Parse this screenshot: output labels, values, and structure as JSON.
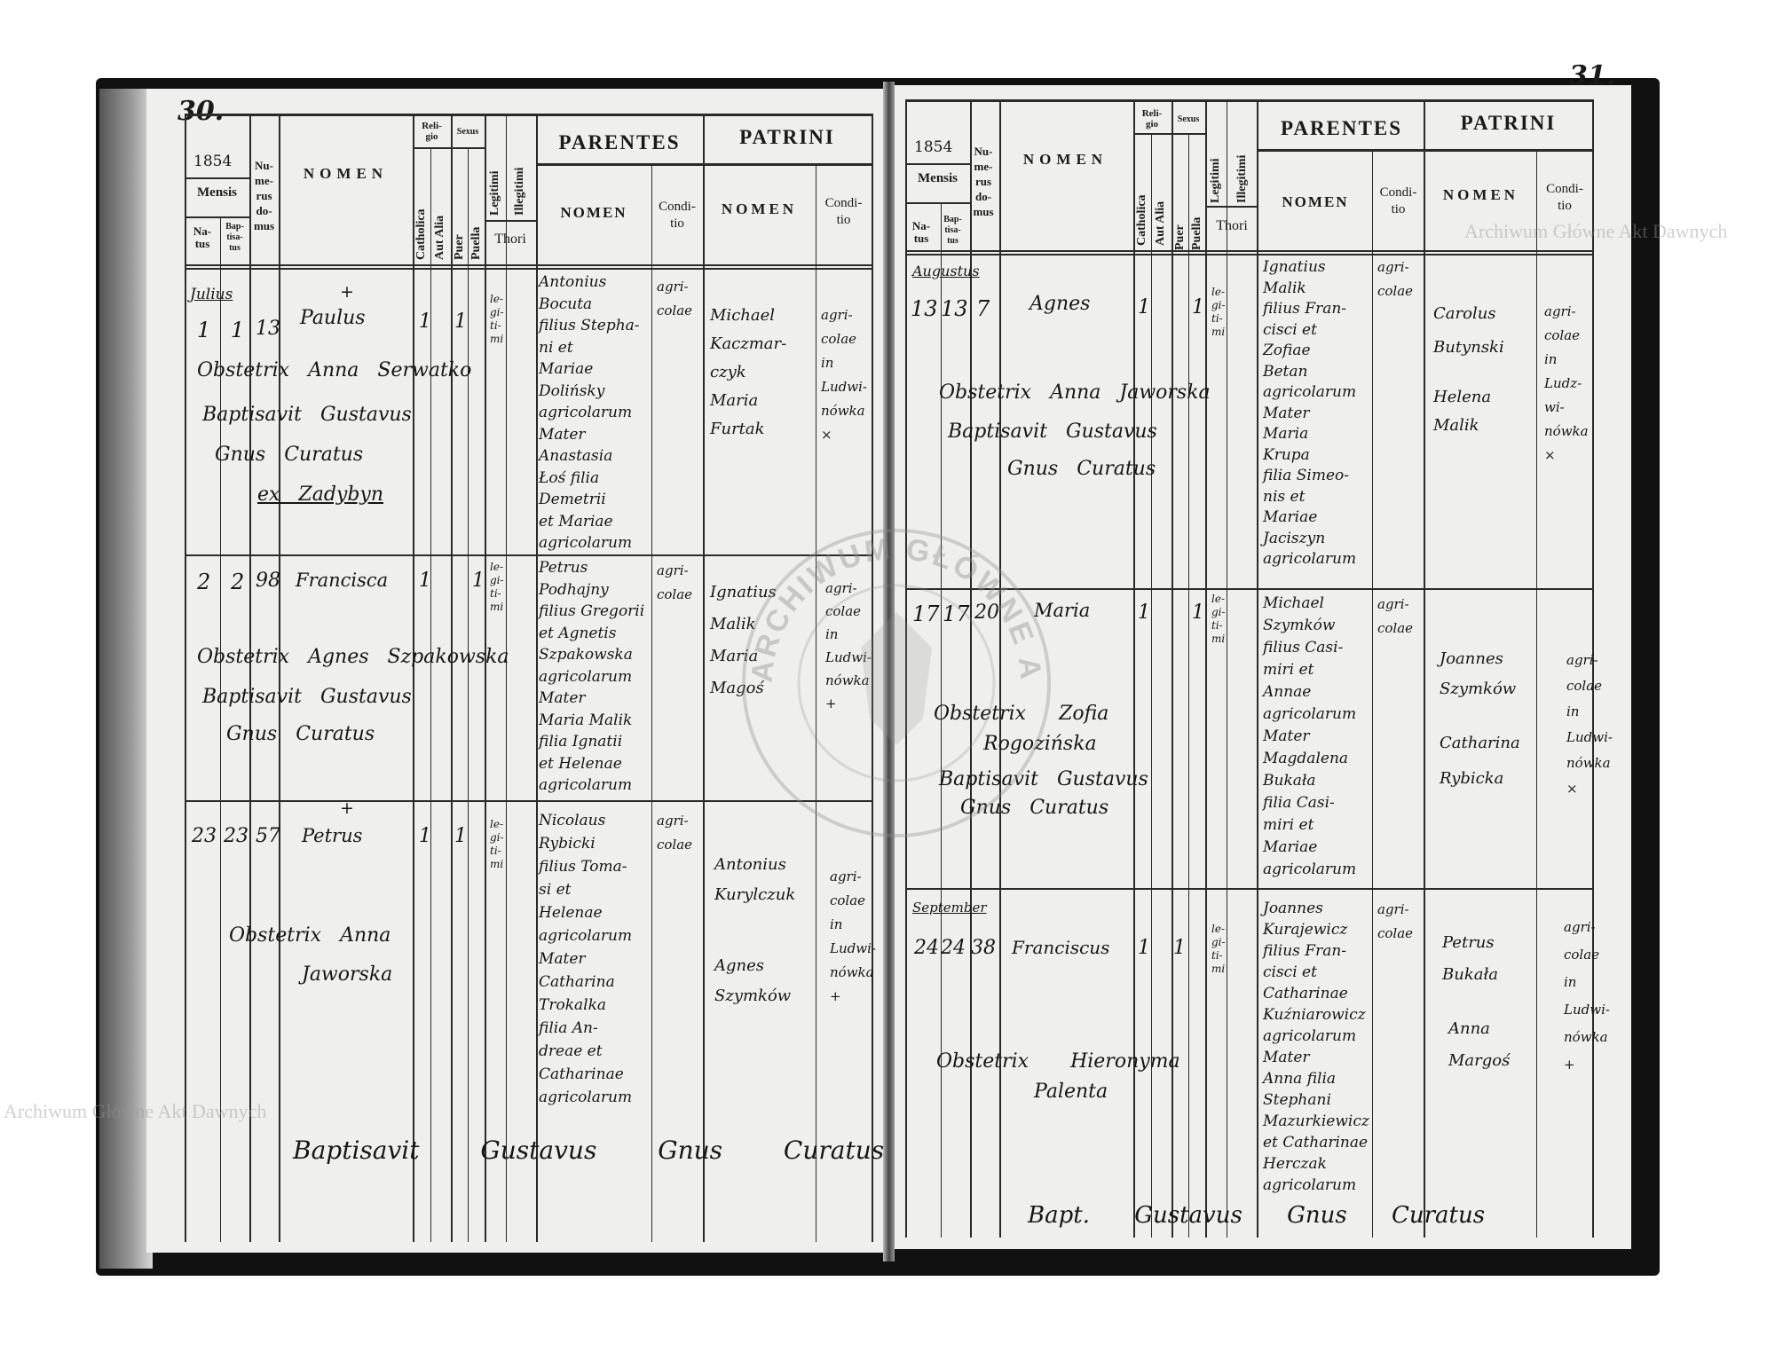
{
  "header": {
    "mensis": "Mensis",
    "natus": "Na-\ntus",
    "baptisatus": "Bap-\ntisa-\ntus",
    "numerus_domus": "Nu-\nme-\nrus\ndo-\nmus",
    "nomen": "NOMEN",
    "religio": "Reli-\ngio",
    "catholica": "Catholica",
    "aut_alia": "Aut Alia",
    "sexus": "Sexus",
    "puer": "Puer",
    "puella": "Puella",
    "legitimi": "Legitimi",
    "illegitimi": "Illegitimi",
    "thori": "Thori",
    "parentes": "PARENTES",
    "parentes_nomen": "NOMEN",
    "conditio": "Condi-\ntio",
    "patrini": "PATRINI",
    "patrini_nomen": "NOMEN"
  },
  "left_page": {
    "page_number": "30.",
    "year": "1854",
    "entries": [
      {
        "month": "Julius",
        "natus": "1",
        "baptisatus": "1",
        "domus": "13",
        "mark": "+",
        "nomen": "Paulus",
        "catholica": "1",
        "sexus": "1",
        "legitimi": "le-\ngi-\nti-\nmi",
        "parentes": "Antonius\nBocuta\nfilius Stepha-\nni et\nMariae\nDolińsky\nagricolarum\nMater\nAnastasia\nŁoś filia\nDemetrii\net Mariae\nagricolarum",
        "parentes_conditio": "agri-\ncolae",
        "patrini": "Michael\nKaczmar-\nczyk\nMaria\nFurtak",
        "patrini_conditio": "agri-\ncolae\nin\nLudwi-\nnówka\n×",
        "obstetrix": "Obstetrix Anna Serwatko",
        "baptisavit": "Baptisavit Gustavus",
        "curatus": "Gnus Curatus",
        "note": "ex Zadybyn"
      },
      {
        "month": "",
        "natus": "2",
        "baptisatus": "2",
        "domus": "98",
        "mark": "",
        "nomen": "Francisca",
        "catholica": "1",
        "sexus": "1",
        "legitimi": "le-\ngi-\nti-\nmi",
        "parentes": "Petrus\nPodhajny\nfilius Gregorii\net Agnetis\nSzpakowska\nagricolarum\nMater\nMaria Malik\nfilia Ignatii\net Helenae\nagricolarum",
        "parentes_conditio": "agri-\ncolae",
        "patrini": "Ignatius\nMalik\nMaria\nMagoś",
        "patrini_conditio": "agri-\ncolae\nin\nLudwi-\nnówka\n+",
        "obstetrix": "Obstetrix Agnes Szpakowska",
        "baptisavit": "Baptisavit Gustavus",
        "curatus": "Gnus Curatus"
      },
      {
        "month": "",
        "natus": "23",
        "baptisatus": "23",
        "domus": "57",
        "mark": "+",
        "nomen": "Petrus",
        "catholica": "1",
        "sexus": "1",
        "legitimi": "le-\ngi-\nti-\nmi",
        "parentes": "Nicolaus\nRybicki\nfilius Toma-\nsi et\nHelenae\nagricolarum\nMater\nCatharina\nTrokalka\nfilia An-\ndreae et\nCatharinae\nagricolarum",
        "parentes_conditio": "agri-\ncolae",
        "patrini_1": "Antonius\nKurylczuk",
        "patrini_2": "Agnes\nSzymków",
        "patrini_conditio": "agri-\ncolae\nin\nLudwi-\nnówka\n+",
        "obstetrix": "Obstetrix Anna",
        "obstetrix_2": "Jaworska"
      }
    ],
    "footer": "Baptisavit Gustavus Gnus Curatus"
  },
  "right_page": {
    "page_number": "31.",
    "year": "1854",
    "entries": [
      {
        "month": "Augustus",
        "natus": "13",
        "baptisatus": "13",
        "domus": "7",
        "nomen": "Agnes",
        "catholica": "1",
        "sexus": "1",
        "legitimi": "le-\ngi-\nti-\nmi",
        "parentes": "Ignatius\nMalik\nfilius Fran-\ncisci et\nZofiae\nBetan\nagricolarum\nMater\nMaria\nKrupa\nfilia Simeo-\nnis et\nMariae\nJaciszyn\nagricolarum",
        "parentes_conditio": "agri-\ncolae",
        "patrini_1": "Carolus\nButynski",
        "patrini_2": "Helena\nMalik",
        "patrini_conditio": "agri-\ncolae\nin\nLudz-\nwi-\nnówka\n×",
        "obstetrix": "Obstetrix Anna Jaworska",
        "baptisavit": "Baptisavit Gustavus",
        "curatus": "Gnus Curatus"
      },
      {
        "month": "",
        "natus": "17",
        "baptisatus": "17",
        "domus": "20",
        "nomen": "Maria",
        "catholica": "1",
        "sexus": "1",
        "legitimi": "le-\ngi-\nti-\nmi",
        "parentes": "Michael\nSzymków\nfilius Casi-\nmiri et\nAnnae\nagricolarum\nMater\nMagdalena\nBukała\nfilia Casi-\nmiri et\nMariae\nagricolarum",
        "parentes_conditio": "agri-\ncolae",
        "patrini_1": "Joannes\nSzymków",
        "patrini_2": "Catharina\nRybicka",
        "patrini_conditio": "agri-\ncolae\nin\nLudwi-\nnówka\n×",
        "obstetrix": "Obstetrix Zofia",
        "obstetrix_2": "Rogozińska",
        "baptisavit": "Baptisavit Gustavus",
        "curatus": "Gnus Curatus"
      },
      {
        "month": "September",
        "natus": "24",
        "baptisatus": "24",
        "domus": "38",
        "nomen": "Franciscus",
        "catholica": "1",
        "sexus": "1",
        "legitimi": "le-\ngi-\nti-\nmi",
        "parentes": "Joannes\nKurajewicz\nfilius Fran-\ncisci et\nCatharinae\nKuźniarowicz\nagricolarum\nMater\nAnna filia\nStephani\nMazurkiewicz\net Catharinae\nHerczak\nagricolarum",
        "parentes_conditio": "agri-\ncolae",
        "patrini_1": "Petrus\nBukała",
        "patrini_2": "Anna\nMargoś",
        "patrini_conditio": "agri-\ncolae\nin\nLudwi-\nnówka\n+",
        "obstetrix": "Obstetrix Hieronyma",
        "obstetrix_2": "Palenta"
      }
    ],
    "footer": "Bapt. Gustavus Gnus Curatus"
  },
  "watermark": {
    "text": "Archiwum Główne Akt Dawnych",
    "stamp": "ARCHIWUM GŁÓWNE AKT DAWNYCH"
  }
}
